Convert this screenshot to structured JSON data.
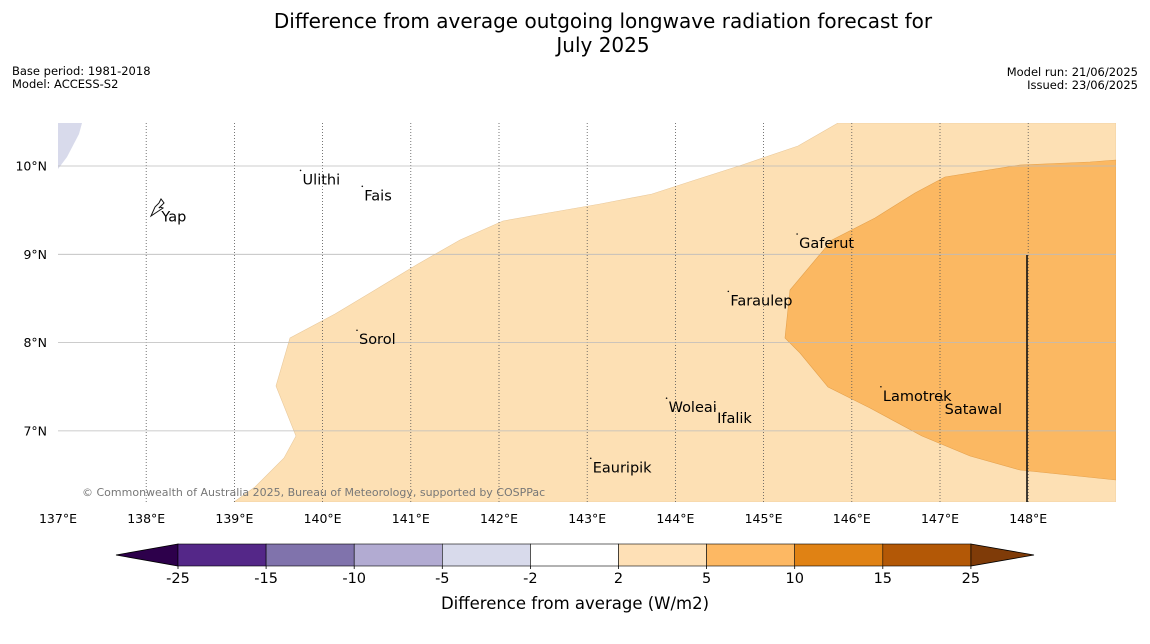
{
  "header": {
    "title_line1": "Difference from average outgoing longwave radiation forecast for",
    "title_line2": "July 2025",
    "base_period": "Base period: 1981-2018",
    "model": "Model: ACCESS-S2",
    "model_run": "Model run: 21/06/2025",
    "issued": "Issued: 23/06/2025"
  },
  "map": {
    "lon_labels": [
      "137°E",
      "138°E",
      "139°E",
      "140°E",
      "141°E",
      "142°E",
      "143°E",
      "144°E",
      "145°E",
      "146°E",
      "147°E",
      "148°E"
    ],
    "lon_values": [
      137,
      138,
      139,
      140,
      141,
      142,
      143,
      144,
      145,
      146,
      147,
      148
    ],
    "lat_labels": [
      "10°N",
      "9°N",
      "8°N",
      "7°N"
    ],
    "lat_values": [
      10,
      9,
      8,
      7
    ],
    "extent": {
      "lon_min": 137,
      "lon_max": 149,
      "lat_min": 6.2,
      "lat_max": 10.5
    },
    "places": [
      {
        "name": "Ulithi",
        "lon": 139.75,
        "lat": 9.95
      },
      {
        "name": "Fais",
        "lon": 140.45,
        "lat": 9.77
      },
      {
        "name": "Yap",
        "lon": 138.15,
        "lat": 9.53
      },
      {
        "name": "Gaferut",
        "lon": 145.38,
        "lat": 9.23
      },
      {
        "name": "Faraulep",
        "lon": 144.6,
        "lat": 8.58
      },
      {
        "name": "Sorol",
        "lon": 140.39,
        "lat": 8.14
      },
      {
        "name": "Lamotrek",
        "lon": 146.33,
        "lat": 7.5
      },
      {
        "name": "Woleai",
        "lon": 143.9,
        "lat": 7.37
      },
      {
        "name": "Ifalik",
        "lon": 144.45,
        "lat": 7.25
      },
      {
        "name": "Satawal",
        "lon": 147.03,
        "lat": 7.35
      },
      {
        "name": "Eauripik",
        "lon": 143.04,
        "lat": 6.69
      }
    ],
    "copyright": "© Commonwealth of Australia 2025, Bureau of Meteorology, supported by COSPPac",
    "colors": {
      "light_orange": "#fde0b4",
      "mid_orange": "#fbb862",
      "light_purple": "#d8daeb",
      "grid": "#bbbbbb"
    }
  },
  "colorbar": {
    "title": "Difference from average (W/m2)",
    "tick_labels": [
      "-25",
      "-15",
      "-10",
      "-5",
      "-2",
      "2",
      "5",
      "10",
      "15",
      "25"
    ],
    "under_color": "#2d004b",
    "over_color": "#7f3b08",
    "bins": [
      {
        "color": "#542788"
      },
      {
        "color": "#8073ac"
      },
      {
        "color": "#b2abd2"
      },
      {
        "color": "#d8daeb"
      },
      {
        "color": "#ffffff"
      },
      {
        "color": "#fee0b6"
      },
      {
        "color": "#fdb863"
      },
      {
        "color": "#e08214"
      },
      {
        "color": "#b35806"
      }
    ]
  }
}
